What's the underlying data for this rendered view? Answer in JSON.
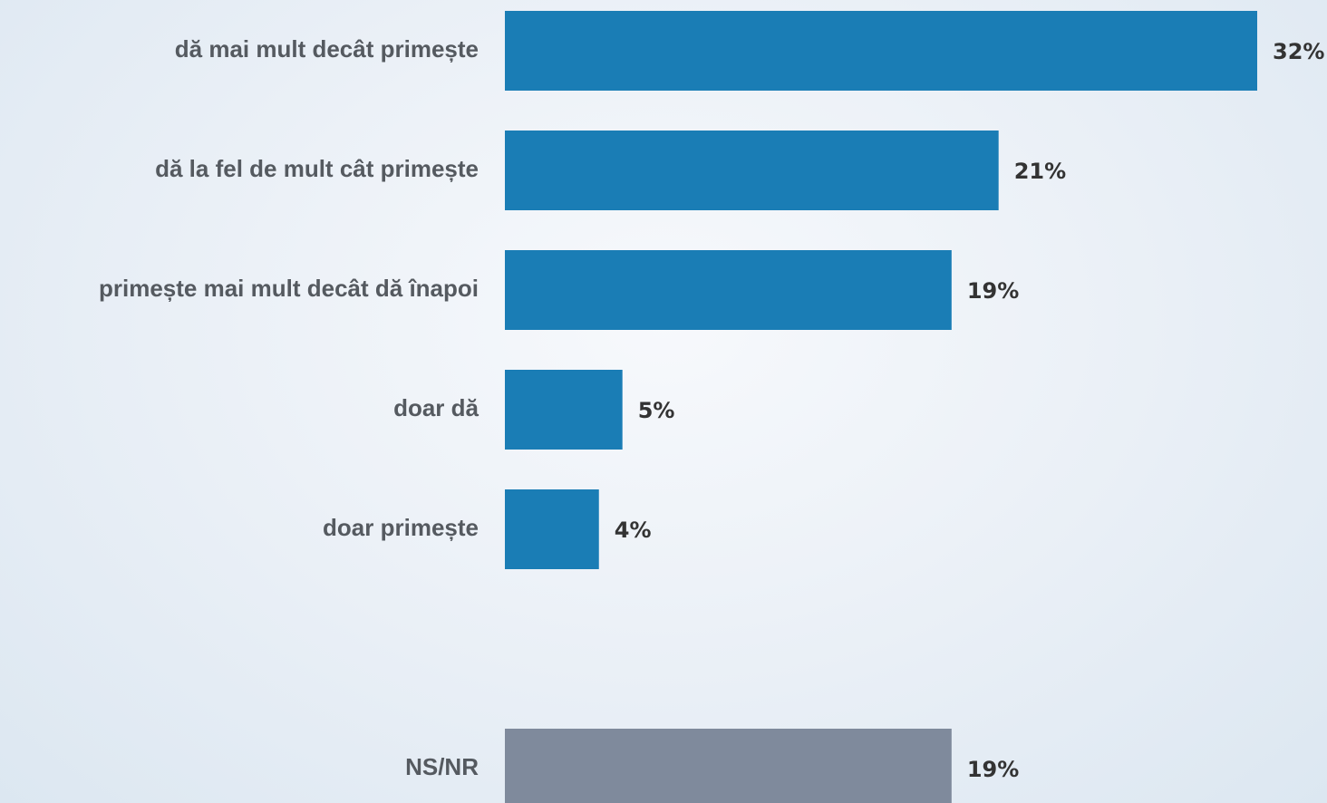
{
  "chart_data": {
    "type": "bar",
    "orientation": "horizontal",
    "categories": [
      "dă mai mult decât primește",
      "dă la fel de mult cât primește",
      "primește mai mult decât dă înapoi",
      "doar dă",
      "doar primește",
      null,
      "NS/NR"
    ],
    "values": [
      32,
      21,
      19,
      5,
      4,
      null,
      19
    ],
    "value_labels": [
      "32%",
      "21%",
      "19%",
      "5%",
      "4%",
      null,
      "19%"
    ],
    "colors": [
      "#1a7db5",
      "#1a7db5",
      "#1a7db5",
      "#1a7db5",
      "#1a7db5",
      null,
      "#7f8a9c"
    ]
  }
}
